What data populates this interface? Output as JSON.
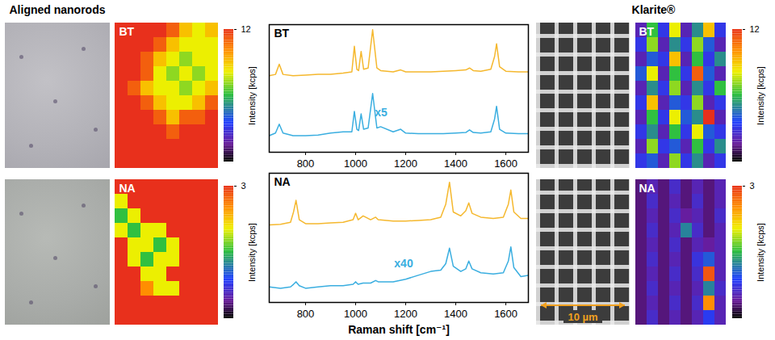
{
  "headers": [
    "Aligned nanorods",
    "Klarite®"
  ],
  "scale_bar": {
    "label": "10 µm"
  },
  "chart_data": [
    {
      "type": "heatmap",
      "title": "BT",
      "tick_labels": false,
      "cells": [
        [
          12,
          12,
          12,
          12,
          11,
          9,
          8,
          9
        ],
        [
          12,
          12,
          12,
          11,
          9,
          8,
          8,
          8
        ],
        [
          12,
          12,
          11,
          9,
          8,
          7,
          8,
          8
        ],
        [
          12,
          12,
          11,
          8,
          7,
          8,
          7,
          8
        ],
        [
          12,
          11,
          9,
          8,
          8,
          7,
          8,
          9
        ],
        [
          12,
          12,
          11,
          9,
          8,
          8,
          9,
          11
        ],
        [
          12,
          12,
          12,
          11,
          9,
          11,
          11,
          12
        ],
        [
          12,
          12,
          12,
          12,
          11,
          12,
          12,
          12
        ],
        [
          12,
          12,
          12,
          12,
          12,
          12,
          12,
          12
        ],
        [
          12,
          12,
          12,
          12,
          12,
          12,
          12,
          12
        ]
      ],
      "colorbar": {
        "label": "Intensity [kcps]",
        "range": [
          0,
          12
        ],
        "ticks": [
          12
        ]
      }
    },
    {
      "type": "heatmap",
      "title": "NA",
      "tick_labels": false,
      "cells": [
        [
          3,
          3,
          3,
          3,
          3,
          3,
          3,
          3
        ],
        [
          2,
          3,
          3,
          3,
          3,
          3,
          3,
          3
        ],
        [
          1.5,
          2,
          3,
          3,
          3,
          3,
          3,
          3
        ],
        [
          2,
          1.5,
          2,
          2,
          3,
          3,
          3,
          3
        ],
        [
          3,
          2,
          2,
          1.5,
          2,
          3,
          3,
          3
        ],
        [
          3,
          2,
          1.5,
          2,
          2,
          3,
          3,
          3
        ],
        [
          3,
          3,
          2,
          2,
          3,
          3,
          3,
          3
        ],
        [
          3,
          3,
          2.5,
          2,
          2,
          3,
          3,
          3
        ],
        [
          3,
          3,
          3,
          3,
          3,
          3,
          3,
          3
        ],
        [
          3,
          3,
          3,
          3,
          3,
          3,
          3,
          3
        ]
      ],
      "colorbar": {
        "label": "Intensity [kcps]",
        "range": [
          0,
          3
        ],
        "ticks": [
          3
        ]
      }
    },
    {
      "type": "heatmap",
      "title": "BT",
      "tick_labels": false,
      "cells": [
        [
          2,
          6,
          3,
          8,
          2,
          5,
          9,
          3
        ],
        [
          3,
          7,
          2,
          5,
          3,
          7,
          4,
          2
        ],
        [
          2,
          4,
          3,
          9,
          2,
          6,
          3,
          5
        ],
        [
          4,
          8,
          2,
          6,
          3,
          11,
          4,
          2
        ],
        [
          2,
          5,
          3,
          7,
          2,
          5,
          3,
          6
        ],
        [
          3,
          9,
          2,
          4,
          3,
          7,
          2,
          3
        ],
        [
          2,
          6,
          3,
          8,
          4,
          5,
          12,
          2
        ],
        [
          3,
          5,
          2,
          6,
          3,
          8,
          4,
          3
        ],
        [
          2,
          7,
          3,
          4,
          2,
          6,
          3,
          5
        ],
        [
          3,
          4,
          2,
          7,
          3,
          5,
          2,
          3
        ]
      ],
      "colorbar": {
        "label": "Intensity [kcps]",
        "range": [
          0,
          12
        ],
        "ticks": [
          12
        ]
      }
    },
    {
      "type": "heatmap",
      "title": "NA",
      "tick_labels": false,
      "cells": [
        [
          0.3,
          0.5,
          0.3,
          0.6,
          0.3,
          0.5,
          0.3,
          0.5
        ],
        [
          0.3,
          0.6,
          0.3,
          0.5,
          0.3,
          0.6,
          0.3,
          0.5
        ],
        [
          0.3,
          0.5,
          0.3,
          0.6,
          0.4,
          0.5,
          0.3,
          0.6
        ],
        [
          0.3,
          0.6,
          0.3,
          0.5,
          1.2,
          0.6,
          0.3,
          0.5
        ],
        [
          0.3,
          0.5,
          0.3,
          0.6,
          0.3,
          0.5,
          0.4,
          0.5
        ],
        [
          0.3,
          0.6,
          0.3,
          0.5,
          0.3,
          0.7,
          1.0,
          0.5
        ],
        [
          0.3,
          0.5,
          0.3,
          0.6,
          0.3,
          0.6,
          2.8,
          0.5
        ],
        [
          0.3,
          0.6,
          0.3,
          0.5,
          0.3,
          0.5,
          1.2,
          0.6
        ],
        [
          0.3,
          0.5,
          0.3,
          0.6,
          0.3,
          0.6,
          2.5,
          0.5
        ],
        [
          0.3,
          0.6,
          0.3,
          0.5,
          0.3,
          0.5,
          0.8,
          0.5
        ]
      ],
      "colorbar": {
        "label": "Intensity [kcps]",
        "range": [
          0,
          3
        ],
        "ticks": [
          3
        ]
      }
    },
    {
      "type": "line",
      "title": "BT",
      "tick_labels": "x",
      "xlim": [
        655,
        1690
      ],
      "xticks": [
        800,
        1000,
        1200,
        1400,
        1600
      ],
      "ylim": [
        0,
        10
      ],
      "x": [
        655,
        680,
        695,
        710,
        750,
        800,
        850,
        900,
        950,
        985,
        995,
        1005,
        1012,
        1022,
        1032,
        1050,
        1068,
        1085,
        1100,
        1150,
        1180,
        1200,
        1250,
        1300,
        1350,
        1400,
        1440,
        1455,
        1470,
        1500,
        1540,
        1555,
        1563,
        1575,
        1600,
        1650,
        1690
      ],
      "series": [
        {
          "color": "#f5b82e",
          "values": [
            6.0,
            6.1,
            6.9,
            6.1,
            6.0,
            6.05,
            6.1,
            6.1,
            6.2,
            6.3,
            8.3,
            6.5,
            6.4,
            7.9,
            6.5,
            6.6,
            9.6,
            6.6,
            6.4,
            6.3,
            6.45,
            6.3,
            6.3,
            6.3,
            6.35,
            6.4,
            6.45,
            6.6,
            6.4,
            6.35,
            6.5,
            7.5,
            8.5,
            6.7,
            6.35,
            6.3,
            6.3
          ]
        },
        {
          "color": "#3aaee0",
          "values": [
            1.3,
            1.5,
            2.2,
            1.5,
            1.3,
            1.3,
            1.35,
            1.5,
            1.6,
            1.6,
            3.2,
            1.8,
            1.7,
            3.0,
            1.8,
            1.9,
            4.6,
            1.9,
            2.0,
            1.6,
            1.8,
            1.5,
            1.45,
            1.45,
            1.45,
            1.5,
            1.55,
            1.75,
            1.55,
            1.5,
            1.6,
            2.6,
            3.6,
            1.8,
            1.5,
            1.45,
            1.45
          ]
        }
      ],
      "annotations": [
        {
          "text": "x5",
          "color": "#3aaee0"
        }
      ]
    },
    {
      "type": "line",
      "title": "NA",
      "tick_labels": "x",
      "xlabel": "Raman shift [cm⁻¹]",
      "xlim": [
        655,
        1690
      ],
      "xticks": [
        800,
        1000,
        1200,
        1400,
        1600
      ],
      "ylim": [
        0,
        10
      ],
      "x": [
        655,
        700,
        740,
        752,
        762,
        775,
        800,
        850,
        900,
        950,
        990,
        1000,
        1010,
        1030,
        1040,
        1060,
        1080,
        1090,
        1150,
        1200,
        1250,
        1300,
        1340,
        1360,
        1375,
        1390,
        1420,
        1440,
        1452,
        1465,
        1500,
        1550,
        1590,
        1610,
        1620,
        1632,
        1660,
        1690
      ],
      "series": [
        {
          "color": "#f5b82e",
          "values": [
            6.0,
            6.05,
            6.2,
            7.0,
            7.9,
            6.4,
            6.1,
            6.1,
            6.15,
            6.2,
            6.4,
            6.9,
            6.4,
            6.7,
            6.6,
            6.4,
            6.6,
            6.4,
            6.3,
            6.3,
            6.35,
            6.4,
            6.6,
            7.6,
            9.3,
            7.0,
            6.7,
            7.1,
            7.7,
            6.9,
            6.6,
            6.5,
            6.6,
            7.6,
            8.7,
            7.0,
            6.5,
            6.5
          ]
        },
        {
          "color": "#3aaee0",
          "values": [
            1.2,
            1.1,
            1.2,
            1.4,
            1.6,
            1.3,
            1.1,
            1.2,
            1.3,
            1.3,
            1.4,
            1.6,
            1.4,
            1.5,
            1.5,
            1.5,
            1.7,
            1.6,
            1.6,
            1.8,
            2.1,
            2.4,
            2.5,
            3.0,
            4.2,
            2.8,
            2.4,
            2.6,
            3.2,
            2.6,
            2.3,
            2.2,
            2.3,
            3.2,
            4.3,
            2.7,
            2.0,
            2.1
          ]
        }
      ],
      "annotations": [
        {
          "text": "x40",
          "color": "#3aaee0"
        }
      ]
    }
  ]
}
